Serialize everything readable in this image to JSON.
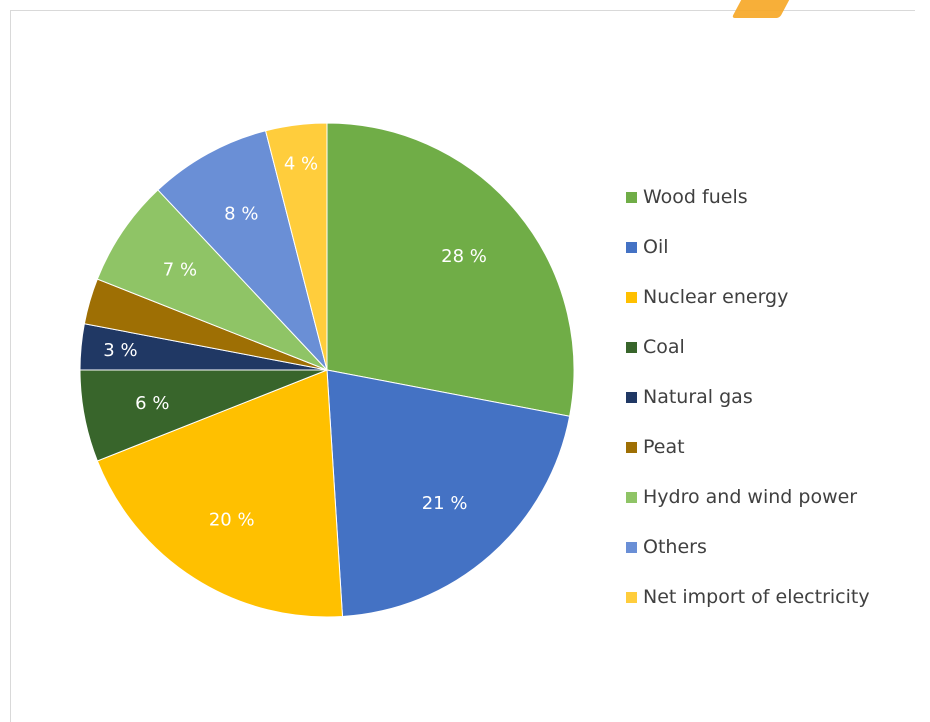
{
  "chart_data": {
    "type": "pie",
    "title": "",
    "slices": [
      {
        "label": "Wood fuels",
        "value": 28,
        "display": "28 %",
        "color": "#70ad47",
        "label_color": "#ffffff"
      },
      {
        "label": "Oil",
        "value": 21,
        "display": "21 %",
        "color": "#4472c4",
        "label_color": "#ffffff"
      },
      {
        "label": "Nuclear energy",
        "value": 20,
        "display": "20 %",
        "color": "#ffc000",
        "label_color": "#ffffff"
      },
      {
        "label": "Coal",
        "value": 6,
        "display": "6 %",
        "color": "#38652b",
        "label_color": "#ffffff"
      },
      {
        "label": "Natural gas",
        "value": 3,
        "display": "3 %",
        "color": "#203864",
        "label_color": "#ffffff"
      },
      {
        "label": "Peat",
        "value": 3,
        "display": "",
        "color": "#9e6f04",
        "label_color": "#ffffff"
      },
      {
        "label": "Hydro and wind power",
        "value": 7,
        "display": "7 %",
        "color": "#8fc466",
        "label_color": "#ffffff"
      },
      {
        "label": "Others",
        "value": 8,
        "display": "8 %",
        "color": "#6a8fd6",
        "label_color": "#ffffff"
      },
      {
        "label": "Net import of electricity",
        "value": 4,
        "display": "4 %",
        "color": "#ffcd3c",
        "label_color": "#ffffff"
      }
    ],
    "start_angle_deg": 0,
    "direction": "clockwise",
    "legend_position": "right"
  }
}
